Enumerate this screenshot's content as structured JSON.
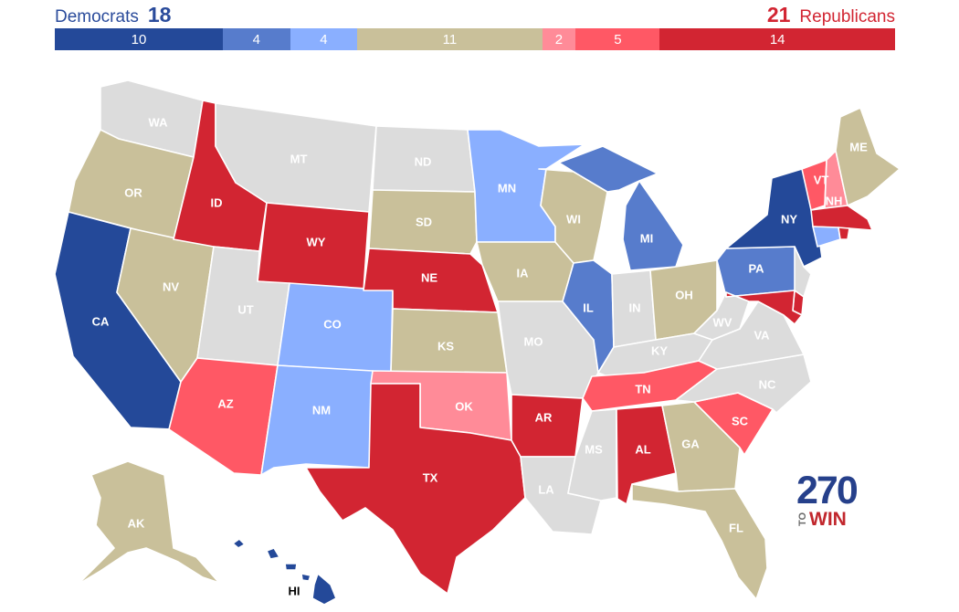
{
  "header": {
    "dem_label": "Democrats",
    "dem_total": "18",
    "rep_label": "Republicans",
    "rep_total": "21"
  },
  "rating_bar": [
    {
      "key": "safe_d",
      "value": 10,
      "label": "10",
      "color": "#244999"
    },
    {
      "key": "likely_d",
      "value": 4,
      "label": "4",
      "color": "#577ccc"
    },
    {
      "key": "lean_d",
      "value": 4,
      "label": "4",
      "color": "#8aafff"
    },
    {
      "key": "tossup",
      "value": 11,
      "label": "11",
      "color": "#c9c09a"
    },
    {
      "key": "tilt_r",
      "value": 2,
      "label": "2",
      "color": "#ff8b98"
    },
    {
      "key": "lean_r",
      "value": 5,
      "label": "5",
      "color": "#ff5865"
    },
    {
      "key": "safe_r",
      "value": 14,
      "label": "14",
      "color": "#d22532"
    }
  ],
  "colors": {
    "safe_d": "#244999",
    "likely_d": "#577ccc",
    "lean_d": "#8aafff",
    "tossup": "#c9c09a",
    "tilt_r": "#ff8b98",
    "lean_r": "#ff5865",
    "safe_r": "#d22532",
    "no_race": "#dcdcdc"
  },
  "states": [
    {
      "code": "WA",
      "label": "WA",
      "rating": "no_race"
    },
    {
      "code": "OR",
      "label": "OR",
      "rating": "tossup"
    },
    {
      "code": "CA",
      "label": "CA",
      "rating": "safe_d"
    },
    {
      "code": "NV",
      "label": "NV",
      "rating": "tossup"
    },
    {
      "code": "ID",
      "label": "ID",
      "rating": "safe_r"
    },
    {
      "code": "MT",
      "label": "MT",
      "rating": "no_race"
    },
    {
      "code": "WY",
      "label": "WY",
      "rating": "safe_r"
    },
    {
      "code": "UT",
      "label": "UT",
      "rating": "no_race"
    },
    {
      "code": "AZ",
      "label": "AZ",
      "rating": "lean_r"
    },
    {
      "code": "CO",
      "label": "CO",
      "rating": "lean_d"
    },
    {
      "code": "NM",
      "label": "NM",
      "rating": "lean_d"
    },
    {
      "code": "ND",
      "label": "ND",
      "rating": "no_race"
    },
    {
      "code": "SD",
      "label": "SD",
      "rating": "tossup"
    },
    {
      "code": "NE",
      "label": "NE",
      "rating": "safe_r"
    },
    {
      "code": "KS",
      "label": "KS",
      "rating": "tossup"
    },
    {
      "code": "OK",
      "label": "OK",
      "rating": "tilt_r"
    },
    {
      "code": "TX",
      "label": "TX",
      "rating": "safe_r"
    },
    {
      "code": "MN",
      "label": "MN",
      "rating": "lean_d"
    },
    {
      "code": "IA",
      "label": "IA",
      "rating": "tossup"
    },
    {
      "code": "MO",
      "label": "MO",
      "rating": "no_race"
    },
    {
      "code": "AR",
      "label": "AR",
      "rating": "safe_r"
    },
    {
      "code": "LA",
      "label": "LA",
      "rating": "no_race"
    },
    {
      "code": "WI",
      "label": "WI",
      "rating": "tossup"
    },
    {
      "code": "IL",
      "label": "IL",
      "rating": "likely_d"
    },
    {
      "code": "MI",
      "label": "MI",
      "rating": "likely_d"
    },
    {
      "code": "IN",
      "label": "IN",
      "rating": "no_race"
    },
    {
      "code": "OH",
      "label": "OH",
      "rating": "tossup"
    },
    {
      "code": "KY",
      "label": "KY",
      "rating": "no_race"
    },
    {
      "code": "TN",
      "label": "TN",
      "rating": "lean_r"
    },
    {
      "code": "MS",
      "label": "MS",
      "rating": "no_race"
    },
    {
      "code": "AL",
      "label": "AL",
      "rating": "safe_r"
    },
    {
      "code": "GA",
      "label": "GA",
      "rating": "tossup"
    },
    {
      "code": "FL",
      "label": "FL",
      "rating": "tossup"
    },
    {
      "code": "SC",
      "label": "SC",
      "rating": "lean_r"
    },
    {
      "code": "NC",
      "label": "NC",
      "rating": "no_race"
    },
    {
      "code": "VA",
      "label": "VA",
      "rating": "no_race"
    },
    {
      "code": "WV",
      "label": "WV",
      "rating": "no_race"
    },
    {
      "code": "PA",
      "label": "PA",
      "rating": "likely_d"
    },
    {
      "code": "NY",
      "label": "NY",
      "rating": "safe_d"
    },
    {
      "code": "VT",
      "label": "VT",
      "rating": "lean_r"
    },
    {
      "code": "NH",
      "label": "NH",
      "rating": "tilt_r"
    },
    {
      "code": "ME",
      "label": "ME",
      "rating": "tossup"
    },
    {
      "code": "MA",
      "label": "",
      "rating": "safe_r"
    },
    {
      "code": "RI",
      "label": "",
      "rating": "safe_r"
    },
    {
      "code": "CT",
      "label": "",
      "rating": "lean_d"
    },
    {
      "code": "NJ",
      "label": "",
      "rating": "no_race"
    },
    {
      "code": "DE",
      "label": "",
      "rating": "safe_r"
    },
    {
      "code": "MD",
      "label": "",
      "rating": "safe_r"
    },
    {
      "code": "AK",
      "label": "AK",
      "rating": "tossup"
    },
    {
      "code": "HI",
      "label": "HI",
      "rating": "safe_d"
    }
  ],
  "logo": {
    "top": "270",
    "to": "TO",
    "win": "WIN"
  }
}
